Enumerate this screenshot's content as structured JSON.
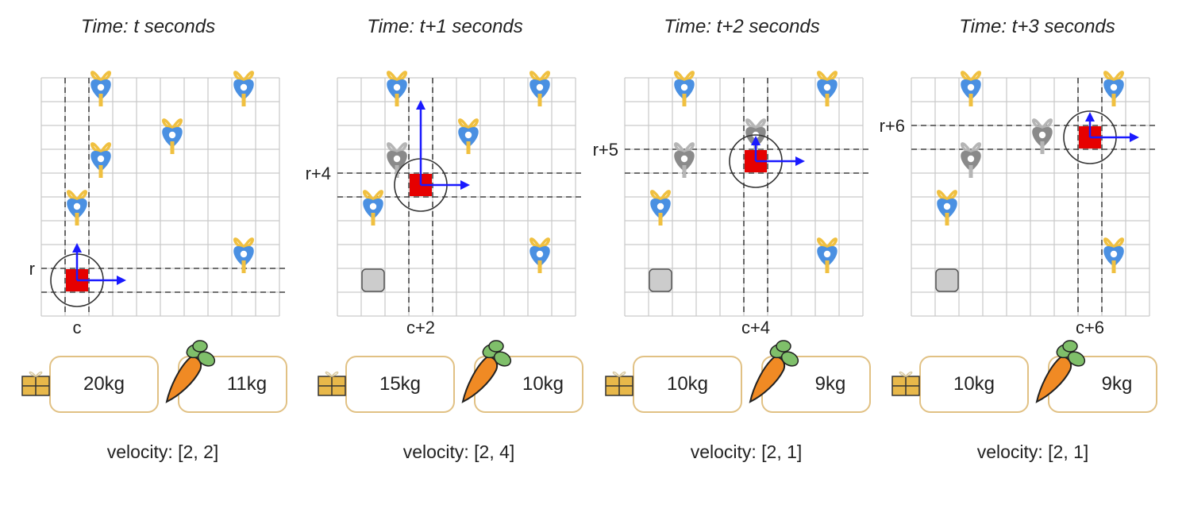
{
  "panels": [
    {
      "title": "Time: t seconds",
      "row_label": "r",
      "col_label": "c",
      "box_weight": "20kg",
      "carrot_weight": "11kg",
      "velocity": "velocity: [2, 2]",
      "agent": {
        "row": 8,
        "col": 1
      },
      "other_objects": [
        {
          "row": 0,
          "col": 2
        },
        {
          "row": 0,
          "col": 8
        },
        {
          "row": 2,
          "col": 5
        },
        {
          "row": 3,
          "col": 2
        },
        {
          "row": 5,
          "col": 1
        },
        {
          "row": 7,
          "col": 8
        }
      ],
      "faded_objects": [],
      "obstacles": [],
      "arrow_up_cells": 1.5
    },
    {
      "title": "Time: t+1 seconds",
      "row_label": "r+4",
      "col_label": "c+2",
      "box_weight": "15kg",
      "carrot_weight": "10kg",
      "velocity": "velocity: [2, 4]",
      "agent": {
        "row": 4,
        "col": 3
      },
      "other_objects": [
        {
          "row": 0,
          "col": 2
        },
        {
          "row": 0,
          "col": 8
        },
        {
          "row": 2,
          "col": 5
        },
        {
          "row": 5,
          "col": 1
        },
        {
          "row": 7,
          "col": 8
        }
      ],
      "faded_objects": [
        {
          "row": 3,
          "col": 2
        }
      ],
      "obstacles": [
        {
          "row": 8,
          "col": 1
        }
      ],
      "arrow_up_cells": 3.5
    },
    {
      "title": "Time: t+2 seconds",
      "row_label": "r+5",
      "col_label": "c+4",
      "box_weight": "10kg",
      "carrot_weight": "9kg",
      "velocity": "velocity: [2, 1]",
      "agent": {
        "row": 3,
        "col": 5
      },
      "other_objects": [
        {
          "row": 0,
          "col": 2
        },
        {
          "row": 0,
          "col": 8
        },
        {
          "row": 5,
          "col": 1
        },
        {
          "row": 7,
          "col": 8
        }
      ],
      "faded_objects": [
        {
          "row": 3,
          "col": 2
        },
        {
          "row": 2,
          "col": 5
        }
      ],
      "obstacles": [
        {
          "row": 8,
          "col": 1
        }
      ],
      "arrow_up_cells": 1.0
    },
    {
      "title": "Time: t+3 seconds",
      "row_label": "r+6",
      "col_label": "c+6",
      "box_weight": "10kg",
      "carrot_weight": "9kg",
      "velocity": "velocity: [2, 1]",
      "agent": {
        "row": 2,
        "col": 7
      },
      "other_objects": [
        {
          "row": 0,
          "col": 2
        },
        {
          "row": 0,
          "col": 8
        },
        {
          "row": 5,
          "col": 1
        },
        {
          "row": 7,
          "col": 8
        }
      ],
      "faded_objects": [
        {
          "row": 3,
          "col": 2
        },
        {
          "row": 2,
          "col": 5
        }
      ],
      "obstacles": [
        {
          "row": 8,
          "col": 1
        }
      ],
      "arrow_up_cells": 1.0
    }
  ],
  "colors": {
    "agent": "#e60000",
    "arrow": "#1a1aff",
    "object_body": "#4a90e2",
    "object_ribbon": "#f0c040",
    "faded_object": "#9a9a9a",
    "obstacle": "#cccccc",
    "box_gold": "#e8b84a",
    "carrot": "#f08a24",
    "carrot_leaf": "#7fbf6a",
    "box_border": "#e1c184"
  },
  "icons": {
    "object": "ribbon-heart-icon",
    "box": "gift-box-icon",
    "carrot": "carrot-icon",
    "agent": "red-square-agent"
  }
}
